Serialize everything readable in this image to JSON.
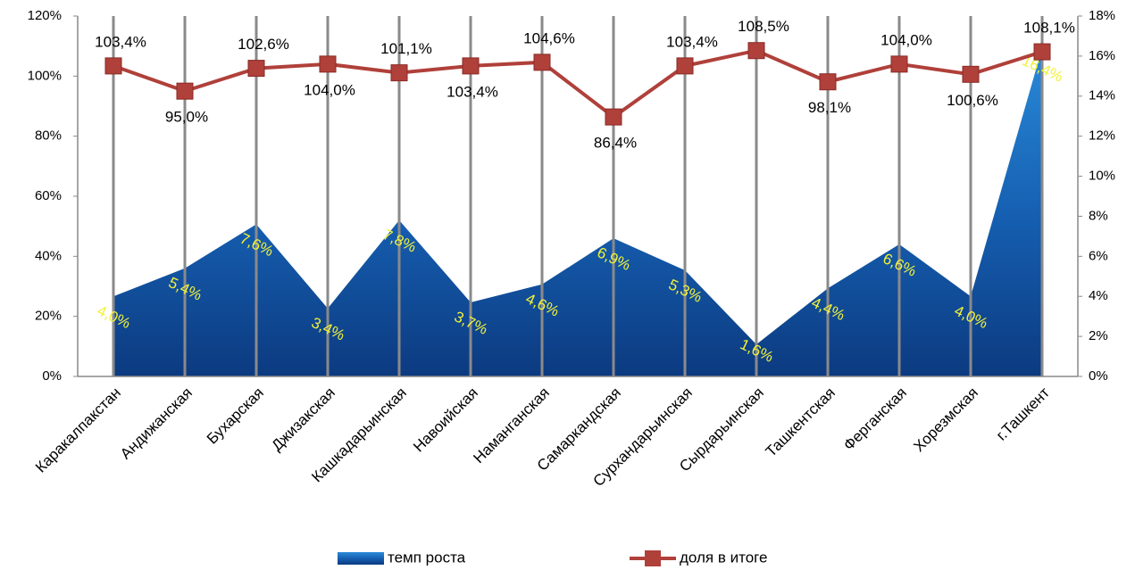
{
  "chart_data": {
    "type": "area-line",
    "categories": [
      "Каракалпакстан",
      "Андижанская",
      "Бухарская",
      "Джизакская",
      "Кашкадарьинская",
      "Навоийская",
      "Наманганская",
      "Самаркандская",
      "Сурхандарьинская",
      "Сырдарьинская",
      "Ташкентская",
      "Ферганская",
      "Хорезмская",
      "г.Ташкент"
    ],
    "series": [
      {
        "name": "темп роста",
        "type": "area",
        "axis": "y2",
        "color": "#1a64b8",
        "values": [
          4.0,
          5.4,
          7.6,
          3.4,
          7.8,
          3.7,
          4.6,
          6.9,
          5.3,
          1.6,
          4.4,
          6.6,
          4.0,
          16.4
        ],
        "value_labels": [
          "4,0%",
          "5,4%",
          "7,6%",
          "3,4%",
          "7,8%",
          "3,7%",
          "4,6%",
          "6,9%",
          "5,3%",
          "1,6%",
          "4,4%",
          "6,6%",
          "4,0%",
          "16,4%"
        ]
      },
      {
        "name": "доля в итоге",
        "type": "line",
        "axis": "y",
        "color": "#b0403a",
        "values": [
          103.4,
          95.0,
          102.6,
          104.0,
          101.1,
          103.4,
          104.6,
          86.4,
          103.4,
          108.5,
          98.1,
          104.0,
          100.6,
          108.1
        ],
        "value_labels": [
          "103,4%",
          "95,0%",
          "102,6%",
          "104,0%",
          "101,1%",
          "103,4%",
          "104,6%",
          "86,4%",
          "103,4%",
          "108,5%",
          "98,1%",
          "104,0%",
          "100,6%",
          "108,1%"
        ]
      }
    ],
    "ylim": [
      0,
      120
    ],
    "yticks": [
      {
        "value": 0,
        "label": "0%"
      },
      {
        "value": 20,
        "label": "20%"
      },
      {
        "value": 40,
        "label": "40%"
      },
      {
        "value": 60,
        "label": "60%"
      },
      {
        "value": 80,
        "label": "80%"
      },
      {
        "value": 100,
        "label": "100%"
      },
      {
        "value": 120,
        "label": "120%"
      }
    ],
    "y2lim": [
      0,
      18
    ],
    "y2ticks": [
      {
        "value": 0,
        "label": "0%"
      },
      {
        "value": 2,
        "label": "2%"
      },
      {
        "value": 4,
        "label": "4%"
      },
      {
        "value": 6,
        "label": "6%"
      },
      {
        "value": 8,
        "label": "8%"
      },
      {
        "value": 10,
        "label": "10%"
      },
      {
        "value": 12,
        "label": "12%"
      },
      {
        "value": 14,
        "label": "14%"
      },
      {
        "value": 16,
        "label": "16%"
      },
      {
        "value": 18,
        "label": "18%"
      }
    ],
    "legend": "bottom"
  }
}
